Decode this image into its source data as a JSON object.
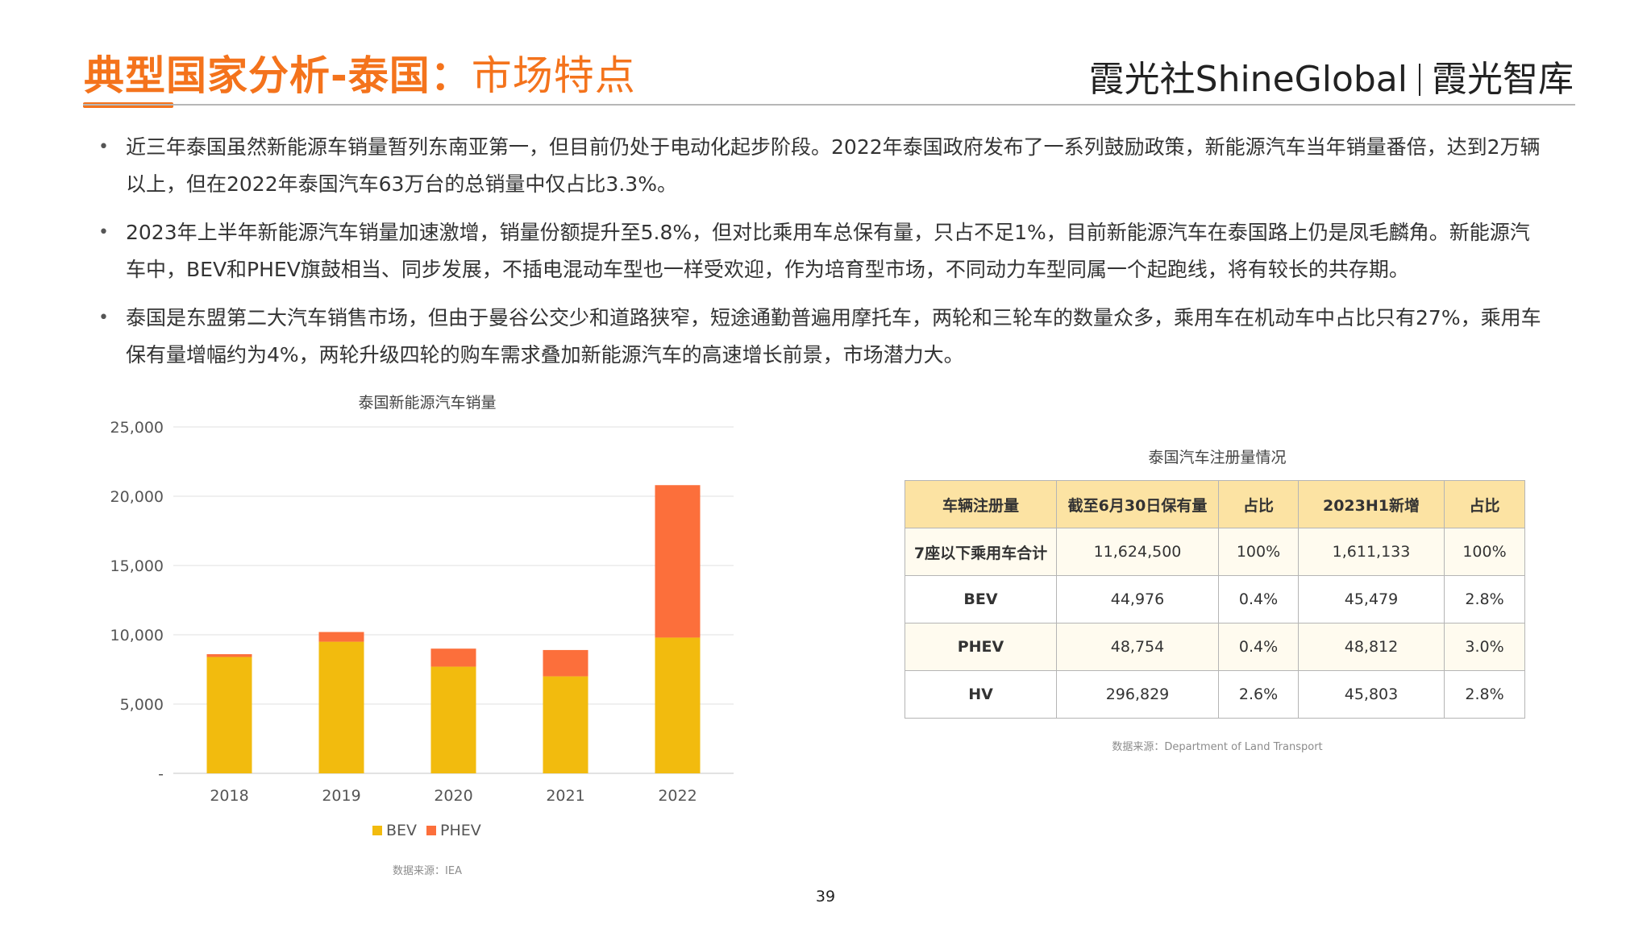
{
  "header": {
    "title_main": "典型国家分析-泰国：",
    "title_sub": "市场特点",
    "brand_left": "霞光社ShineGlobal",
    "brand_right": "霞光智库"
  },
  "bullets": [
    "近三年泰国虽然新能源车销量暂列东南亚第一，但目前仍处于电动化起步阶段。2022年泰国政府发布了一系列鼓励政策，新能源汽车当年销量番倍，达到2万辆以上，但在2022年泰国汽车63万台的总销量中仅占比3.3%。",
    "2023年上半年新能源汽车销量加速激增，销量份额提升至5.8%，但对比乘用车总保有量，只占不足1%，目前新能源汽车在泰国路上仍是凤毛麟角。新能源汽车中，BEV和PHEV旗鼓相当、同步发展，不插电混动车型也一样受欢迎，作为培育型市场，不同动力车型同属一个起跑线，将有较长的共存期。",
    "泰国是东盟第二大汽车销售市场，但由于曼谷公交少和道路狭窄，短途通勤普遍用摩托车，两轮和三轮车的数量众多，乘用车在机动车中占比只有27%，乘用车保有量增幅约为4%，两轮升级四轮的购车需求叠加新能源汽车的高速增长前景，市场潜力大。"
  ],
  "chart_data": {
    "type": "bar",
    "stacked": true,
    "title": "泰国新能源汽车销量",
    "categories": [
      "2018",
      "2019",
      "2020",
      "2021",
      "2022"
    ],
    "series": [
      {
        "name": "BEV",
        "values": [
          8400,
          9500,
          7700,
          7000,
          9800
        ],
        "color": "#f2bb0e"
      },
      {
        "name": "PHEV",
        "values": [
          200,
          700,
          1300,
          1900,
          11000
        ],
        "color": "#fc6f3b"
      }
    ],
    "ylim": [
      0,
      25000
    ],
    "yticks": [
      0,
      5000,
      10000,
      15000,
      20000,
      25000
    ],
    "ytick_labels": [
      "-",
      "5,000",
      "10,000",
      "15,000",
      "20,000",
      "25,000"
    ],
    "legend_position": "bottom",
    "grid": true,
    "source": "数据来源：IEA"
  },
  "table": {
    "title": "泰国汽车注册量情况",
    "headers": [
      "车辆注册量",
      "截至6月30日保有量",
      "占比",
      "2023H1新增",
      "占比"
    ],
    "rows": [
      [
        "7座以下乘用车合计",
        "11,624,500",
        "100%",
        "1,611,133",
        "100%"
      ],
      [
        "BEV",
        "44,976",
        "0.4%",
        "45,479",
        "2.8%"
      ],
      [
        "PHEV",
        "48,754",
        "0.4%",
        "48,812",
        "3.0%"
      ],
      [
        "HV",
        "296,829",
        "2.6%",
        "45,803",
        "2.8%"
      ]
    ],
    "source": "数据来源：Department of Land Transport"
  },
  "page_number": "39"
}
